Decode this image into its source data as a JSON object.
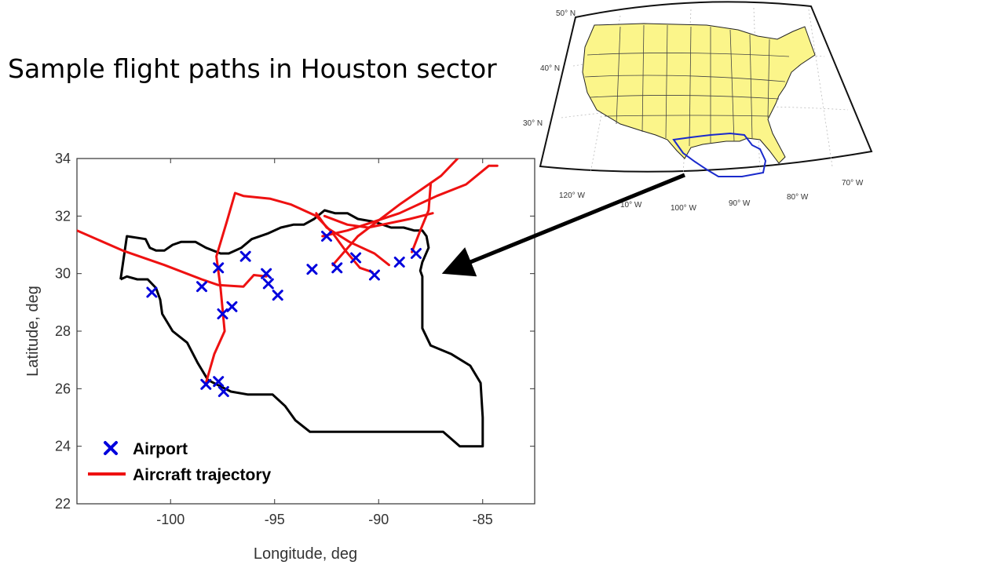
{
  "slide": {
    "title": "Sample flight paths in Houston sector"
  },
  "chart_data": {
    "type": "line",
    "title": "",
    "xlabel": "Longitude, deg",
    "ylabel": "Latitude, deg",
    "xlim": [
      -104.5,
      -82.5
    ],
    "ylim": [
      22,
      34
    ],
    "x_ticks": [
      -100,
      -95,
      -90,
      -85
    ],
    "y_ticks": [
      22,
      24,
      26,
      28,
      30,
      32,
      34
    ],
    "x_tick_labels": [
      "-100",
      "-95",
      "-90",
      "-85"
    ],
    "y_tick_labels": [
      "22",
      "24",
      "26",
      "28",
      "30",
      "32",
      "34"
    ],
    "grid": false,
    "legend": {
      "placement": "bottom-left",
      "entries": [
        {
          "label": "Airport",
          "marker": "x",
          "color": "#0000dd"
        },
        {
          "label": "Aircraft trajectory",
          "marker": "line",
          "color": "#ee1111"
        }
      ]
    },
    "colors": {
      "sector_boundary": "#000000",
      "airport": "#0000dd",
      "trajectory": "#ee1111"
    },
    "sector_boundary": [
      [
        -102.4,
        29.8
      ],
      [
        -102.1,
        31.3
      ],
      [
        -101.2,
        31.2
      ],
      [
        -101.0,
        30.9
      ],
      [
        -100.7,
        30.8
      ],
      [
        -100.3,
        30.8
      ],
      [
        -99.9,
        31.0
      ],
      [
        -99.5,
        31.1
      ],
      [
        -98.8,
        31.1
      ],
      [
        -98.3,
        30.9
      ],
      [
        -97.6,
        30.7
      ],
      [
        -97.2,
        30.7
      ],
      [
        -96.6,
        30.9
      ],
      [
        -96.1,
        31.2
      ],
      [
        -95.3,
        31.4
      ],
      [
        -94.7,
        31.6
      ],
      [
        -94.1,
        31.7
      ],
      [
        -93.6,
        31.7
      ],
      [
        -93.1,
        31.9
      ],
      [
        -92.6,
        32.2
      ],
      [
        -92.1,
        32.1
      ],
      [
        -91.5,
        32.1
      ],
      [
        -91.0,
        31.9
      ],
      [
        -90.2,
        31.8
      ],
      [
        -89.4,
        31.6
      ],
      [
        -88.8,
        31.6
      ],
      [
        -88.3,
        31.5
      ],
      [
        -87.9,
        31.5
      ],
      [
        -87.7,
        31.3
      ],
      [
        -87.6,
        30.9
      ],
      [
        -87.9,
        30.4
      ],
      [
        -88.0,
        30.1
      ],
      [
        -87.9,
        29.9
      ],
      [
        -87.9,
        28.1
      ],
      [
        -87.5,
        27.5
      ],
      [
        -86.5,
        27.2
      ],
      [
        -85.6,
        26.8
      ],
      [
        -85.1,
        26.2
      ],
      [
        -85.0,
        25.0
      ],
      [
        -85.0,
        24.0
      ],
      [
        -86.1,
        24.0
      ],
      [
        -86.9,
        24.5
      ],
      [
        -88.0,
        24.5
      ],
      [
        -90.0,
        24.5
      ],
      [
        -92.0,
        24.5
      ],
      [
        -93.3,
        24.5
      ],
      [
        -94.0,
        24.9
      ],
      [
        -94.5,
        25.4
      ],
      [
        -95.1,
        25.8
      ],
      [
        -96.3,
        25.8
      ],
      [
        -97.1,
        25.9
      ],
      [
        -98.2,
        26.3
      ],
      [
        -98.7,
        26.9
      ],
      [
        -99.2,
        27.6
      ],
      [
        -99.9,
        28.0
      ],
      [
        -100.4,
        28.6
      ],
      [
        -100.5,
        29.1
      ],
      [
        -100.7,
        29.5
      ],
      [
        -101.1,
        29.8
      ],
      [
        -101.6,
        29.8
      ],
      [
        -102.1,
        29.9
      ],
      [
        -102.4,
        29.8
      ]
    ],
    "airports": [
      {
        "x": -100.9,
        "y": 29.35
      },
      {
        "x": -98.5,
        "y": 29.55
      },
      {
        "x": -97.7,
        "y": 30.2
      },
      {
        "x": -97.5,
        "y": 28.6
      },
      {
        "x": -97.05,
        "y": 28.85
      },
      {
        "x": -96.4,
        "y": 30.6
      },
      {
        "x": -95.4,
        "y": 30.0
      },
      {
        "x": -95.3,
        "y": 29.65
      },
      {
        "x": -94.85,
        "y": 29.25
      },
      {
        "x": -93.2,
        "y": 30.15
      },
      {
        "x": -92.5,
        "y": 31.3
      },
      {
        "x": -92.0,
        "y": 30.2
      },
      {
        "x": -91.1,
        "y": 30.55
      },
      {
        "x": -90.2,
        "y": 29.95
      },
      {
        "x": -89.0,
        "y": 30.4
      },
      {
        "x": -88.2,
        "y": 30.7
      },
      {
        "x": -98.3,
        "y": 26.15
      },
      {
        "x": -97.7,
        "y": 26.25
      },
      {
        "x": -97.45,
        "y": 25.9
      }
    ],
    "series": [
      {
        "values": [
          [
            -104.5,
            31.5
          ],
          [
            -102.3,
            30.8
          ],
          [
            -100.3,
            30.3
          ],
          [
            -98.5,
            29.8
          ],
          [
            -97.7,
            29.6
          ],
          [
            -96.5,
            29.55
          ],
          [
            -96.0,
            29.95
          ],
          [
            -95.4,
            29.9
          ]
        ]
      },
      {
        "values": [
          [
            -98.3,
            26.2
          ],
          [
            -97.9,
            27.2
          ],
          [
            -97.4,
            28.0
          ],
          [
            -97.6,
            29.5
          ],
          [
            -97.8,
            30.6
          ],
          [
            -97.3,
            31.8
          ],
          [
            -96.9,
            32.8
          ],
          [
            -96.5,
            32.7
          ],
          [
            -95.2,
            32.6
          ],
          [
            -94.2,
            32.4
          ],
          [
            -93.0,
            32.0
          ],
          [
            -92.2,
            31.4
          ],
          [
            -91.6,
            30.8
          ],
          [
            -90.9,
            30.2
          ],
          [
            -90.3,
            30.05
          ]
        ]
      },
      {
        "values": [
          [
            -93.0,
            32.1
          ],
          [
            -92.5,
            31.6
          ],
          [
            -91.4,
            31.1
          ],
          [
            -90.2,
            30.7
          ],
          [
            -89.5,
            30.3
          ]
        ]
      },
      {
        "values": [
          [
            -92.7,
            31.3
          ],
          [
            -91.5,
            31.5
          ],
          [
            -89.0,
            32.1
          ],
          [
            -87.2,
            32.7
          ],
          [
            -85.8,
            33.1
          ],
          [
            -84.7,
            33.75
          ],
          [
            -84.3,
            33.75
          ]
        ]
      },
      {
        "values": [
          [
            -92.2,
            30.3
          ],
          [
            -91.0,
            31.3
          ],
          [
            -89.0,
            32.4
          ],
          [
            -87.0,
            33.4
          ],
          [
            -86.2,
            34.0
          ]
        ]
      },
      {
        "values": [
          [
            -88.4,
            30.75
          ],
          [
            -88.0,
            31.5
          ],
          [
            -87.6,
            32.2
          ],
          [
            -87.5,
            33.1
          ]
        ]
      },
      {
        "values": [
          [
            -92.6,
            32.0
          ],
          [
            -91.5,
            31.7
          ],
          [
            -90.5,
            31.6
          ],
          [
            -88.5,
            31.9
          ],
          [
            -87.4,
            32.1
          ]
        ]
      }
    ]
  },
  "inset_map": {
    "lat_labels": [
      "50° N",
      "40° N",
      "30° N"
    ],
    "lon_labels": [
      "120° W",
      "10° W",
      "100° W",
      "90° W",
      "80° W",
      "70° W"
    ],
    "land_color": "#fbf58a",
    "highlight_color": "#1a2acc"
  }
}
